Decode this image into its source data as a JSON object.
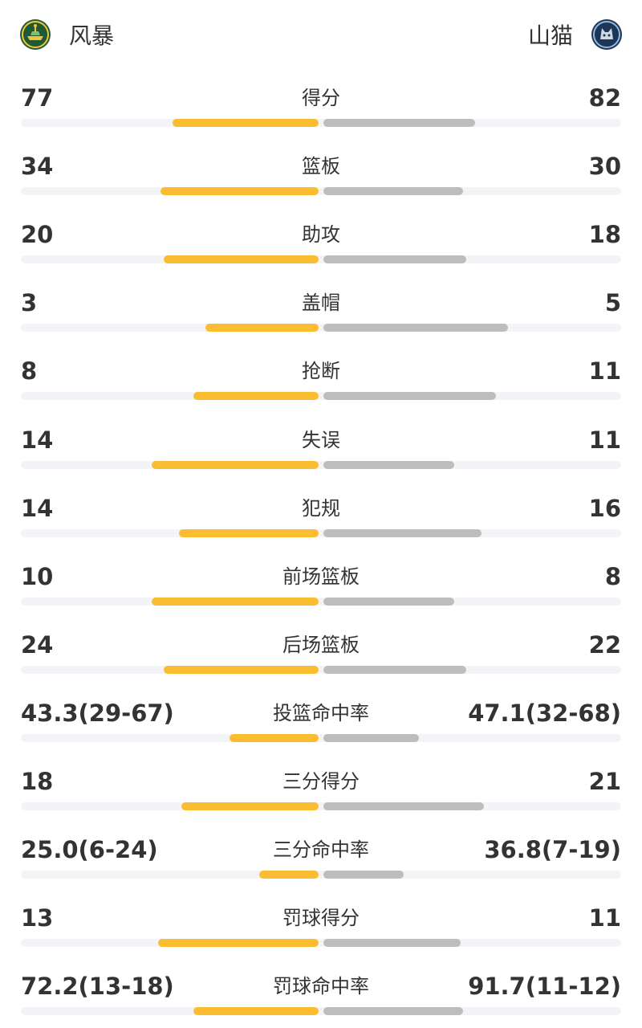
{
  "teams": {
    "home": {
      "name": "风暴",
      "logo_icon": "storm-logo-icon",
      "bar_color": "#fcbc32"
    },
    "away": {
      "name": "山猫",
      "logo_icon": "lynx-logo-icon",
      "bar_color": "#bdbdbd"
    }
  },
  "stats": [
    {
      "label": "得分",
      "home": "77",
      "away": "82",
      "home_share": 0.49,
      "away_share": 0.51
    },
    {
      "label": "篮板",
      "home": "34",
      "away": "30",
      "home_share": 0.53,
      "away_share": 0.47
    },
    {
      "label": "助攻",
      "home": "20",
      "away": "18",
      "home_share": 0.52,
      "away_share": 0.48
    },
    {
      "label": "盖帽",
      "home": "3",
      "away": "5",
      "home_share": 0.38,
      "away_share": 0.62
    },
    {
      "label": "抢断",
      "home": "8",
      "away": "11",
      "home_share": 0.42,
      "away_share": 0.58
    },
    {
      "label": "失误",
      "home": "14",
      "away": "11",
      "home_share": 0.56,
      "away_share": 0.44
    },
    {
      "label": "犯规",
      "home": "14",
      "away": "16",
      "home_share": 0.47,
      "away_share": 0.53
    },
    {
      "label": "前场篮板",
      "home": "10",
      "away": "8",
      "home_share": 0.56,
      "away_share": 0.44
    },
    {
      "label": "后场篮板",
      "home": "24",
      "away": "22",
      "home_share": 0.52,
      "away_share": 0.48
    },
    {
      "label": "投篮命中率",
      "home": "43.3(29-67)",
      "away": "47.1(32-68)",
      "home_share": 0.3,
      "away_share": 0.32
    },
    {
      "label": "三分得分",
      "home": "18",
      "away": "21",
      "home_share": 0.46,
      "away_share": 0.54
    },
    {
      "label": "三分命中率",
      "home": "25.0(6-24)",
      "away": "36.8(7-19)",
      "home_share": 0.2,
      "away_share": 0.27
    },
    {
      "label": "罚球得分",
      "home": "13",
      "away": "11",
      "home_share": 0.54,
      "away_share": 0.46
    },
    {
      "label": "罚球命中率",
      "home": "72.2(13-18)",
      "away": "91.7(11-12)",
      "home_share": 0.42,
      "away_share": 0.47
    }
  ]
}
